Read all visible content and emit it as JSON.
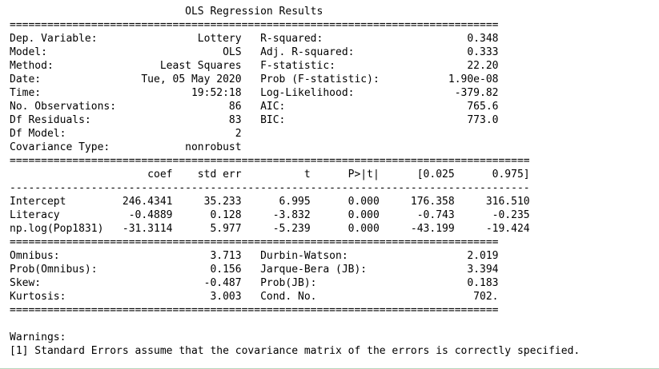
{
  "output_text": "                            OLS Regression Results                            \n==============================================================================\nDep. Variable:                Lottery   R-squared:                       0.348\nModel:                            OLS   Adj. R-squared:                  0.333\nMethod:                 Least Squares   F-statistic:                     22.20\nDate:                Tue, 05 May 2020   Prob (F-statistic):           1.90e-08\nTime:                        19:52:18   Log-Likelihood:                -379.82\nNo. Observations:                  86   AIC:                             765.6\nDf Residuals:                      83   BIC:                             773.0\nDf Model:                           2                                         \nCovariance Type:            nonrobust                                         \n===================================================================================\n                      coef    std err          t      P>|t|      [0.025      0.975]\n-----------------------------------------------------------------------------------\nIntercept         246.4341     35.233      6.995      0.000     176.358     316.510\nLiteracy           -0.4889      0.128     -3.832      0.000      -0.743      -0.235\nnp.log(Pop1831)   -31.3114      5.977     -5.239      0.000     -43.199     -19.424\n==============================================================================\nOmnibus:                        3.713   Durbin-Watson:                   2.019\nProb(Omnibus):                  0.156   Jarque-Bera (JB):                3.394\nSkew:                          -0.487   Prob(JB):                        0.183\nKurtosis:                       3.003   Cond. No.                         702.\n==============================================================================\n\nWarnings:\n[1] Standard Errors assume that the covariance matrix of the errors is correctly specified."
}
